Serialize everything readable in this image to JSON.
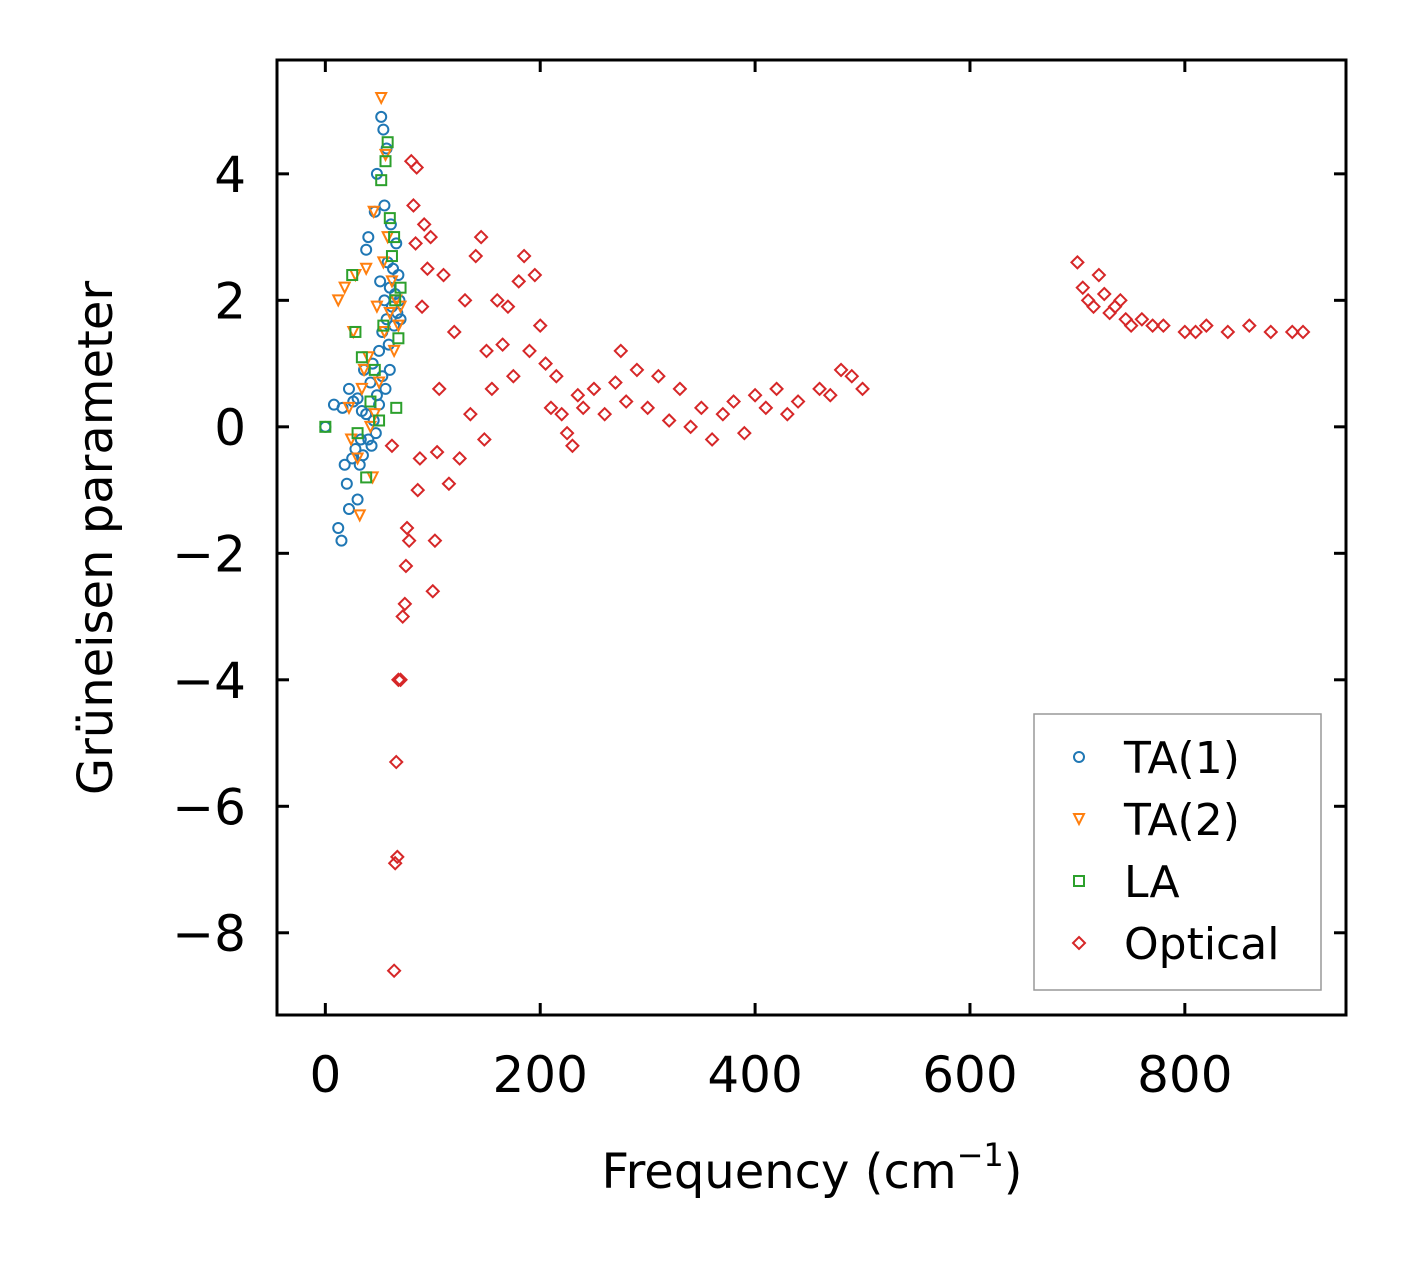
{
  "chart_data": {
    "type": "scatter",
    "title": "",
    "xlabel": "Frequency (cm",
    "xlabel_sup": "−1",
    "xlabel_close": ")",
    "ylabel": "Grüneisen parameter",
    "xlim": [
      -45,
      950
    ],
    "ylim": [
      -9.3,
      5.8
    ],
    "xticks": [
      0,
      200,
      400,
      600,
      800
    ],
    "xtick_labels": [
      "0",
      "200",
      "400",
      "600",
      "800"
    ],
    "yticks": [
      4,
      2,
      0,
      -2,
      -4,
      -6,
      -8
    ],
    "ytick_labels": [
      "4",
      "2",
      "0",
      "−2",
      "−4",
      "−6",
      "−8"
    ],
    "legend_position": "lower-right",
    "series": [
      {
        "name": "TA(1)",
        "marker": "circle",
        "color": "#1f77b4",
        "points": [
          [
            0,
            0
          ],
          [
            8,
            0.35
          ],
          [
            12,
            -1.6
          ],
          [
            15,
            -1.8
          ],
          [
            16,
            0.3
          ],
          [
            18,
            -0.6
          ],
          [
            20,
            -0.9
          ],
          [
            22,
            -1.3
          ],
          [
            22,
            0.6
          ],
          [
            25,
            -0.5
          ],
          [
            26,
            0.4
          ],
          [
            28,
            -0.35
          ],
          [
            30,
            -1.15
          ],
          [
            30,
            0.45
          ],
          [
            32,
            -0.6
          ],
          [
            33,
            -0.2
          ],
          [
            34,
            0.25
          ],
          [
            35,
            -0.45
          ],
          [
            36,
            0.9
          ],
          [
            38,
            0.2
          ],
          [
            38,
            2.8
          ],
          [
            40,
            3.0
          ],
          [
            40,
            -0.2
          ],
          [
            42,
            0.7
          ],
          [
            43,
            -0.3
          ],
          [
            44,
            1.0
          ],
          [
            45,
            0.1
          ],
          [
            46,
            3.4
          ],
          [
            47,
            -0.1
          ],
          [
            48,
            4.0
          ],
          [
            48,
            0.5
          ],
          [
            50,
            1.2
          ],
          [
            50,
            0.35
          ],
          [
            51,
            2.3
          ],
          [
            52,
            4.9
          ],
          [
            53,
            1.5
          ],
          [
            53,
            0.8
          ],
          [
            54,
            4.7
          ],
          [
            55,
            3.5
          ],
          [
            55,
            2.0
          ],
          [
            56,
            0.6
          ],
          [
            57,
            4.4
          ],
          [
            57,
            1.7
          ],
          [
            58,
            2.6
          ],
          [
            59,
            1.3
          ],
          [
            60,
            2.2
          ],
          [
            60,
            0.9
          ],
          [
            61,
            3.2
          ],
          [
            62,
            1.9
          ],
          [
            63,
            2.5
          ],
          [
            64,
            1.6
          ],
          [
            65,
            2.1
          ],
          [
            66,
            2.9
          ],
          [
            67,
            1.8
          ],
          [
            68,
            2.4
          ],
          [
            69,
            2.0
          ],
          [
            70,
            1.7
          ]
        ]
      },
      {
        "name": "TA(2)",
        "marker": "triangle-down",
        "color": "#ff7f0e",
        "points": [
          [
            12,
            2.0
          ],
          [
            18,
            2.2
          ],
          [
            22,
            0.3
          ],
          [
            24,
            -0.2
          ],
          [
            26,
            1.5
          ],
          [
            28,
            2.4
          ],
          [
            30,
            -0.5
          ],
          [
            32,
            -1.4
          ],
          [
            34,
            0.6
          ],
          [
            36,
            0.9
          ],
          [
            38,
            2.5
          ],
          [
            40,
            1.1
          ],
          [
            42,
            0.0
          ],
          [
            44,
            -0.8
          ],
          [
            45,
            3.4
          ],
          [
            46,
            0.2
          ],
          [
            48,
            1.9
          ],
          [
            50,
            0.7
          ],
          [
            52,
            5.2
          ],
          [
            54,
            2.6
          ],
          [
            55,
            1.5
          ],
          [
            56,
            4.3
          ],
          [
            58,
            3.0
          ],
          [
            60,
            1.8
          ],
          [
            62,
            2.3
          ],
          [
            64,
            1.2
          ],
          [
            66,
            2.0
          ],
          [
            68,
            1.6
          ],
          [
            70,
            1.9
          ]
        ]
      },
      {
        "name": "LA",
        "marker": "square",
        "color": "#2ca02c",
        "points": [
          [
            0,
            0
          ],
          [
            25,
            2.4
          ],
          [
            28,
            1.5
          ],
          [
            30,
            -0.1
          ],
          [
            34,
            1.1
          ],
          [
            38,
            -0.8
          ],
          [
            42,
            0.4
          ],
          [
            46,
            0.9
          ],
          [
            50,
            0.1
          ],
          [
            52,
            3.9
          ],
          [
            54,
            1.6
          ],
          [
            56,
            4.2
          ],
          [
            58,
            4.5
          ],
          [
            60,
            3.3
          ],
          [
            62,
            2.7
          ],
          [
            64,
            3.0
          ],
          [
            65,
            2.0
          ],
          [
            66,
            0.3
          ],
          [
            68,
            1.4
          ],
          [
            70,
            2.2
          ]
        ]
      },
      {
        "name": "Optical",
        "marker": "diamond",
        "color": "#d62728",
        "points": [
          [
            62,
            -0.3
          ],
          [
            64,
            -8.6
          ],
          [
            65,
            -6.9
          ],
          [
            66,
            -5.3
          ],
          [
            67,
            -6.8
          ],
          [
            68,
            -4.0
          ],
          [
            70,
            -4.0
          ],
          [
            72,
            -3.0
          ],
          [
            74,
            -2.8
          ],
          [
            75,
            -2.2
          ],
          [
            76,
            -1.6
          ],
          [
            78,
            -1.8
          ],
          [
            80,
            4.2
          ],
          [
            82,
            3.5
          ],
          [
            84,
            2.9
          ],
          [
            85,
            4.1
          ],
          [
            86,
            -1.0
          ],
          [
            88,
            -0.5
          ],
          [
            90,
            1.9
          ],
          [
            92,
            3.2
          ],
          [
            95,
            2.5
          ],
          [
            98,
            3.0
          ],
          [
            100,
            -2.6
          ],
          [
            102,
            -1.8
          ],
          [
            104,
            -0.4
          ],
          [
            106,
            0.6
          ],
          [
            110,
            2.4
          ],
          [
            115,
            -0.9
          ],
          [
            120,
            1.5
          ],
          [
            125,
            -0.5
          ],
          [
            130,
            2.0
          ],
          [
            135,
            0.2
          ],
          [
            140,
            2.7
          ],
          [
            145,
            3.0
          ],
          [
            148,
            -0.2
          ],
          [
            150,
            1.2
          ],
          [
            155,
            0.6
          ],
          [
            160,
            2.0
          ],
          [
            165,
            1.3
          ],
          [
            170,
            1.9
          ],
          [
            175,
            0.8
          ],
          [
            180,
            2.3
          ],
          [
            185,
            2.7
          ],
          [
            190,
            1.2
          ],
          [
            195,
            2.4
          ],
          [
            200,
            1.6
          ],
          [
            205,
            1.0
          ],
          [
            210,
            0.3
          ],
          [
            215,
            0.8
          ],
          [
            220,
            0.2
          ],
          [
            225,
            -0.1
          ],
          [
            230,
            -0.3
          ],
          [
            235,
            0.5
          ],
          [
            240,
            0.3
          ],
          [
            250,
            0.6
          ],
          [
            260,
            0.2
          ],
          [
            270,
            0.7
          ],
          [
            275,
            1.2
          ],
          [
            280,
            0.4
          ],
          [
            290,
            0.9
          ],
          [
            300,
            0.3
          ],
          [
            310,
            0.8
          ],
          [
            320,
            0.1
          ],
          [
            330,
            0.6
          ],
          [
            340,
            0.0
          ],
          [
            350,
            0.3
          ],
          [
            360,
            -0.2
          ],
          [
            370,
            0.2
          ],
          [
            380,
            0.4
          ],
          [
            390,
            -0.1
          ],
          [
            400,
            0.5
          ],
          [
            410,
            0.3
          ],
          [
            420,
            0.6
          ],
          [
            430,
            0.2
          ],
          [
            440,
            0.4
          ],
          [
            460,
            0.6
          ],
          [
            470,
            0.5
          ],
          [
            480,
            0.9
          ],
          [
            490,
            0.8
          ],
          [
            500,
            0.6
          ],
          [
            700,
            2.6
          ],
          [
            705,
            2.2
          ],
          [
            710,
            2.0
          ],
          [
            715,
            1.9
          ],
          [
            720,
            2.4
          ],
          [
            725,
            2.1
          ],
          [
            730,
            1.8
          ],
          [
            735,
            1.9
          ],
          [
            740,
            2.0
          ],
          [
            745,
            1.7
          ],
          [
            750,
            1.6
          ],
          [
            760,
            1.7
          ],
          [
            770,
            1.6
          ],
          [
            780,
            1.6
          ],
          [
            800,
            1.5
          ],
          [
            810,
            1.5
          ],
          [
            820,
            1.6
          ],
          [
            840,
            1.5
          ],
          [
            860,
            1.6
          ],
          [
            880,
            1.5
          ],
          [
            900,
            1.5
          ],
          [
            910,
            1.5
          ]
        ]
      }
    ]
  }
}
